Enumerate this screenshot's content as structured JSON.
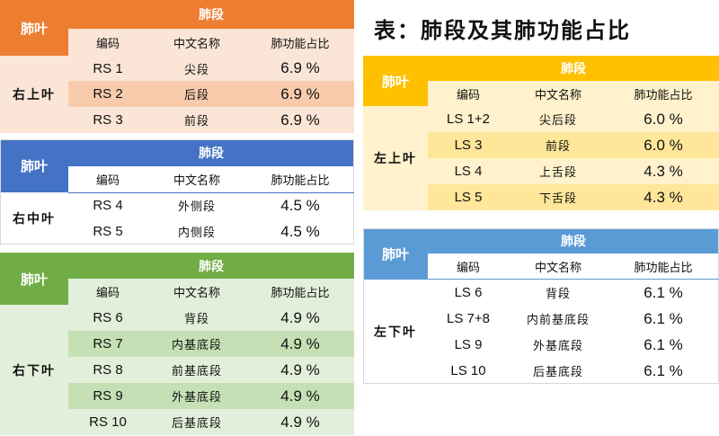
{
  "title": "表：肺段及其肺功能占比",
  "colors": {
    "orange": "#ED7D31",
    "orange_light": "#FBE5D6",
    "orange_mid": "#F8CBAD",
    "blue": "#4472C4",
    "blue_light": "#FFFFFF",
    "blue_mid": "#DAE3F3",
    "green": "#70AD47",
    "green_light": "#E2EFDA",
    "green_mid": "#C5E0B4",
    "gold": "#FFC000",
    "gold_light": "#FFF2CC",
    "gold_mid": "#FFE699",
    "skyblue": "#5B9BD5",
    "skyblue_light": "#FFFFFF"
  },
  "tables": [
    {
      "lobe_header": "肺叶",
      "segment_header": "肺段",
      "lobe_name": "右上叶",
      "col_code": "编码",
      "col_name": "中文名称",
      "col_pct": "肺功能占比",
      "rows": [
        {
          "code": "RS 1",
          "name": "尖段",
          "pct": "6.9 %"
        },
        {
          "code": "RS 2",
          "name": "后段",
          "pct": "6.9 %"
        },
        {
          "code": "RS 3",
          "name": "前段",
          "pct": "6.9 %"
        }
      ]
    },
    {
      "lobe_header": "肺叶",
      "segment_header": "肺段",
      "lobe_name": "右中叶",
      "col_code": "编码",
      "col_name": "中文名称",
      "col_pct": "肺功能占比",
      "rows": [
        {
          "code": "RS 4",
          "name": "外侧段",
          "pct": "4.5 %"
        },
        {
          "code": "RS 5",
          "name": "内侧段",
          "pct": "4.5 %"
        }
      ]
    },
    {
      "lobe_header": "肺叶",
      "segment_header": "肺段",
      "lobe_name": "右下叶",
      "col_code": "编码",
      "col_name": "中文名称",
      "col_pct": "肺功能占比",
      "rows": [
        {
          "code": "RS 6",
          "name": "背段",
          "pct": "4.9 %"
        },
        {
          "code": "RS 7",
          "name": "内基底段",
          "pct": "4.9 %"
        },
        {
          "code": "RS 8",
          "name": "前基底段",
          "pct": "4.9 %"
        },
        {
          "code": "RS 9",
          "name": "外基底段",
          "pct": "4.9 %"
        },
        {
          "code": "RS 10",
          "name": "后基底段",
          "pct": "4.9 %"
        }
      ]
    },
    {
      "lobe_header": "肺叶",
      "segment_header": "肺段",
      "lobe_name": "左上叶",
      "col_code": "编码",
      "col_name": "中文名称",
      "col_pct": "肺功能占比",
      "rows": [
        {
          "code": "LS 1+2",
          "name": "尖后段",
          "pct": "6.0 %"
        },
        {
          "code": "LS 3",
          "name": "前段",
          "pct": "6.0 %"
        },
        {
          "code": "LS 4",
          "name": "上舌段",
          "pct": "4.3 %"
        },
        {
          "code": "LS 5",
          "name": "下舌段",
          "pct": "4.3 %"
        }
      ]
    },
    {
      "lobe_header": "肺叶",
      "segment_header": "肺段",
      "lobe_name": "左下叶",
      "col_code": "编码",
      "col_name": "中文名称",
      "col_pct": "肺功能占比",
      "rows": [
        {
          "code": "LS 6",
          "name": "背段",
          "pct": "6.1 %"
        },
        {
          "code": "LS 7+8",
          "name": "内前基底段",
          "pct": "6.1 %"
        },
        {
          "code": "LS 9",
          "name": "外基底段",
          "pct": "6.1 %"
        },
        {
          "code": "LS 10",
          "name": "后基底段",
          "pct": "6.1 %"
        }
      ]
    }
  ]
}
